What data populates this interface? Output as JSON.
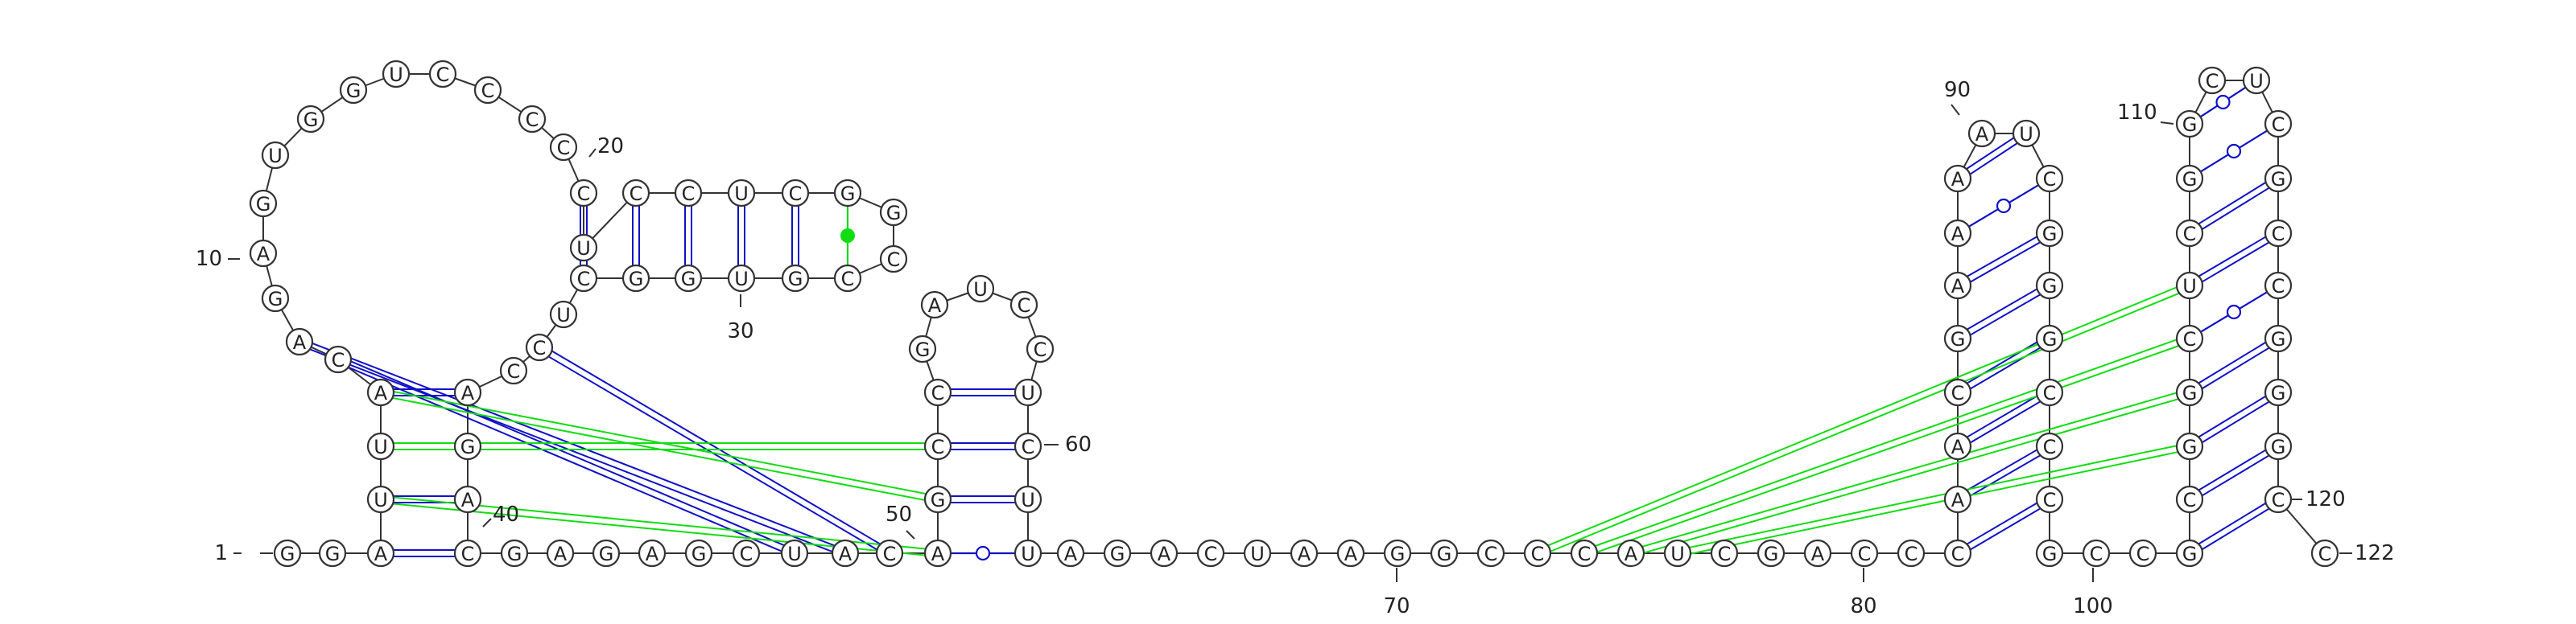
{
  "sequence": "GGAUUACAGAGUGGUCCCCCUCCUCGGCCGUGGCUCCAGACGAGAGCUACAGCCGAUCCUCUUAGACUAAGGCCCAUCGACCCAACGAAAAUCGGGCCCGCCGCGGCUCGGCUCGCCGGGCC",
  "base_labels": [
    "G",
    "G",
    "A",
    "U",
    "U",
    "A",
    "C",
    "A",
    "G",
    "A",
    "G",
    "U",
    "G",
    "G",
    "U",
    "C",
    "C",
    "C",
    "C",
    "C",
    "U",
    "C",
    "C",
    "U",
    "C",
    "G",
    "G",
    "C",
    "C",
    "G",
    "U",
    "G",
    "G",
    "C",
    "U",
    "C",
    "C",
    "A",
    "G",
    "A",
    "C",
    "G",
    "A",
    "G",
    "A",
    "G",
    "C",
    "U",
    "A",
    "C",
    "A",
    "G",
    "C",
    "C",
    "G",
    "A",
    "U",
    "C",
    "C",
    "U",
    "C",
    "U",
    "U",
    "A",
    "G",
    "A",
    "C",
    "U",
    "A",
    "A",
    "G",
    "G",
    "C",
    "C",
    "C",
    "A",
    "U",
    "C",
    "G",
    "A",
    "C",
    "C",
    "C",
    "A",
    "A",
    "C",
    "G",
    "A",
    "A",
    "A",
    "A",
    "U",
    "C",
    "G",
    "G",
    "G",
    "C",
    "C",
    "C",
    "G",
    "C",
    "C",
    "G",
    "C",
    "G",
    "G",
    "C",
    "U",
    "C",
    "G",
    "G",
    "C",
    "U",
    "C",
    "G",
    "C",
    "C",
    "G",
    "G",
    "G",
    "C",
    "C"
  ],
  "number_labels": [
    "1",
    "10",
    "20",
    "30",
    "40",
    "50",
    "60",
    "70",
    "80",
    "90",
    "100",
    "110",
    "120",
    "122"
  ],
  "colors": {
    "canonical_pair": "#1010c8",
    "noncanonical_pair": "#1010c8",
    "pseudoknot_pair": "#11dd11",
    "backbone": "#333333"
  }
}
